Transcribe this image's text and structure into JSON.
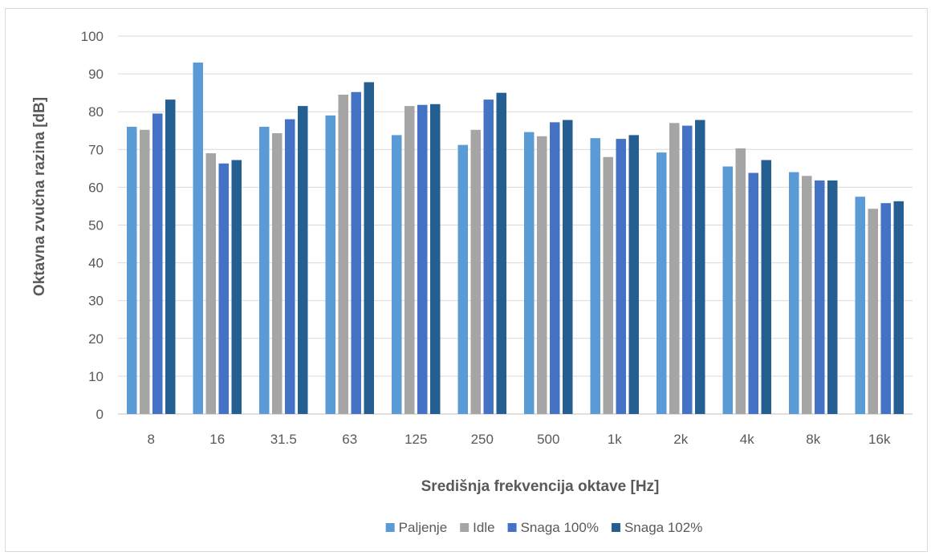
{
  "chart_data": {
    "type": "bar",
    "title": "",
    "xlabel": "Središnja frekvencija oktave [Hz]",
    "ylabel": "Oktavna zvučna razina [dB]",
    "ylim": [
      0,
      100
    ],
    "ytick_step": 10,
    "grid": true,
    "legend_position": "bottom",
    "categories": [
      "8",
      "16",
      "31.5",
      "63",
      "125",
      "250",
      "500",
      "1k",
      "2k",
      "4k",
      "8k",
      "16k"
    ],
    "series": [
      {
        "name": "Paljenje",
        "color": "#5B9BD5",
        "values": [
          76,
          93,
          76,
          79,
          73.8,
          71.2,
          74.6,
          73,
          69.2,
          65.5,
          64,
          57.5
        ]
      },
      {
        "name": "Idle",
        "color": "#A5A5A5",
        "values": [
          75.2,
          69,
          74.3,
          84.5,
          81.5,
          75.2,
          73.5,
          68,
          77,
          70.3,
          63,
          54.3
        ]
      },
      {
        "name": "Snaga 100%",
        "color": "#4472C4",
        "values": [
          79.5,
          66.3,
          78,
          85.2,
          81.8,
          83.2,
          77.2,
          72.8,
          76.3,
          63.8,
          61.8,
          55.8
        ]
      },
      {
        "name": "Snaga 102%",
        "color": "#255E91",
        "values": [
          83.2,
          67.2,
          81.5,
          87.8,
          82,
          85,
          77.8,
          73.8,
          77.8,
          67.2,
          61.8,
          56.3
        ]
      }
    ]
  }
}
